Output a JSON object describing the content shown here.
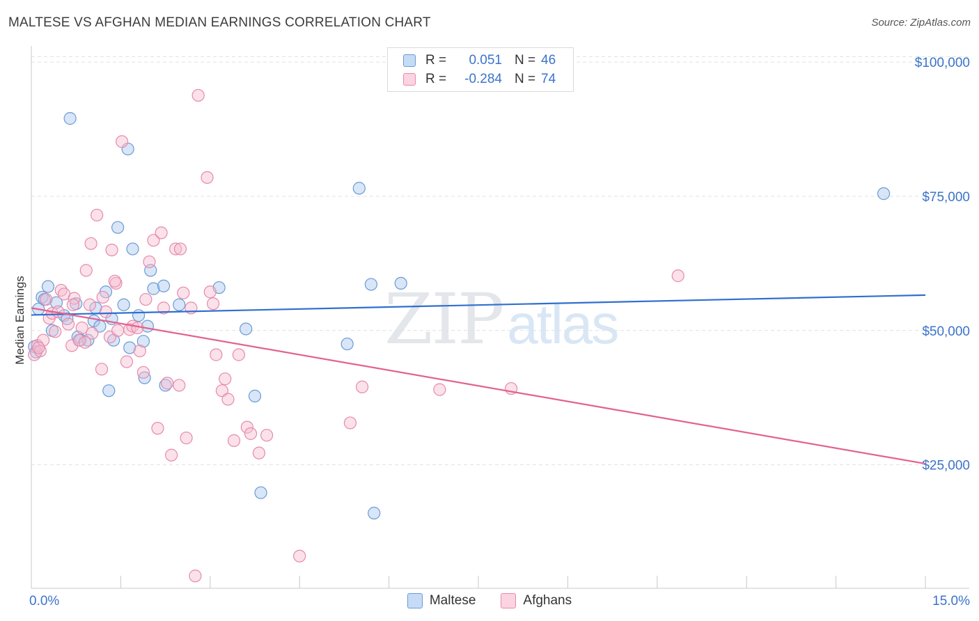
{
  "title": "MALTESE VS AFGHAN MEDIAN EARNINGS CORRELATION CHART",
  "source": "Source: ZipAtlas.com",
  "watermark": {
    "zip": "ZIP",
    "atlas": "atlas"
  },
  "legend": {
    "maltese": {
      "r_label": "R =",
      "r_value": "0.051",
      "n_label": "N =",
      "n_value": "46"
    },
    "afghans": {
      "r_label": "R =",
      "r_value": "-0.284",
      "n_label": "N =",
      "n_value": "74"
    }
  },
  "colors": {
    "maltese_fill": "#a9c8ee",
    "maltese_stroke": "#6a9ad6",
    "maltese_line": "#2f6fcf",
    "afghans_fill": "#f6bcd0",
    "afghans_stroke": "#e68aaa",
    "afghans_line": "#e2628e",
    "axis_label": "#3b74c9",
    "grid": "#e1e1e1"
  },
  "chart_data": {
    "type": "scatter",
    "title": "MALTESE VS AFGHAN MEDIAN EARNINGS CORRELATION CHART",
    "xlabel": "",
    "ylabel": "Median Earnings",
    "xlim": [
      0,
      15
    ],
    "ylim": [
      2000,
      103000
    ],
    "x_tick_labels": [
      "0.0%",
      "15.0%"
    ],
    "y_ticks": [
      25000,
      50000,
      75000,
      100000
    ],
    "y_tick_labels": [
      "$25,000",
      "$50,000",
      "$75,000",
      "$100,000"
    ],
    "series": [
      {
        "name": "Maltese",
        "points": [
          [
            0.05,
            47000
          ],
          [
            0.12,
            54000
          ],
          [
            0.18,
            56200
          ],
          [
            0.22,
            55800
          ],
          [
            0.28,
            58200
          ],
          [
            0.35,
            50000
          ],
          [
            0.42,
            55200
          ],
          [
            0.55,
            52800
          ],
          [
            0.6,
            52200
          ],
          [
            0.65,
            89500
          ],
          [
            0.75,
            55000
          ],
          [
            0.78,
            48800
          ],
          [
            0.82,
            48200
          ],
          [
            0.95,
            48200
          ],
          [
            1.05,
            51800
          ],
          [
            1.08,
            54200
          ],
          [
            1.15,
            50800
          ],
          [
            1.25,
            57200
          ],
          [
            1.3,
            38800
          ],
          [
            1.35,
            52200
          ],
          [
            1.38,
            48200
          ],
          [
            1.45,
            69200
          ],
          [
            1.55,
            54800
          ],
          [
            1.62,
            83800
          ],
          [
            1.65,
            46800
          ],
          [
            1.7,
            65200
          ],
          [
            1.8,
            52800
          ],
          [
            1.88,
            48000
          ],
          [
            1.9,
            41200
          ],
          [
            1.95,
            50800
          ],
          [
            2.0,
            61200
          ],
          [
            2.05,
            57800
          ],
          [
            2.22,
            58300
          ],
          [
            2.25,
            39800
          ],
          [
            2.48,
            54800
          ],
          [
            3.15,
            58000
          ],
          [
            3.6,
            50300
          ],
          [
            3.75,
            37800
          ],
          [
            3.85,
            19800
          ],
          [
            5.3,
            47500
          ],
          [
            5.5,
            76500
          ],
          [
            5.7,
            58600
          ],
          [
            5.75,
            16000
          ],
          [
            6.2,
            58800
          ],
          [
            14.3,
            75500
          ],
          [
            0.08,
            46000
          ]
        ]
      },
      {
        "name": "Afghans",
        "points": [
          [
            0.05,
            45500
          ],
          [
            0.1,
            47200
          ],
          [
            0.15,
            46200
          ],
          [
            0.2,
            48200
          ],
          [
            0.25,
            55800
          ],
          [
            0.3,
            52300
          ],
          [
            0.35,
            53200
          ],
          [
            0.4,
            49800
          ],
          [
            0.45,
            53500
          ],
          [
            0.5,
            57500
          ],
          [
            0.55,
            56800
          ],
          [
            0.62,
            51200
          ],
          [
            0.68,
            47200
          ],
          [
            0.72,
            56000
          ],
          [
            0.8,
            48200
          ],
          [
            0.85,
            50500
          ],
          [
            0.92,
            61200
          ],
          [
            0.98,
            54800
          ],
          [
            1.0,
            66200
          ],
          [
            1.02,
            49500
          ],
          [
            1.1,
            71500
          ],
          [
            1.18,
            42800
          ],
          [
            1.2,
            56200
          ],
          [
            1.25,
            53500
          ],
          [
            1.32,
            48800
          ],
          [
            1.35,
            65000
          ],
          [
            1.42,
            58800
          ],
          [
            1.45,
            50000
          ],
          [
            1.52,
            85200
          ],
          [
            1.6,
            44200
          ],
          [
            1.65,
            50200
          ],
          [
            1.7,
            50800
          ],
          [
            1.78,
            50500
          ],
          [
            1.82,
            46200
          ],
          [
            1.88,
            42200
          ],
          [
            1.92,
            55800
          ],
          [
            1.98,
            62800
          ],
          [
            2.05,
            66800
          ],
          [
            2.12,
            31800
          ],
          [
            2.18,
            68200
          ],
          [
            2.22,
            54200
          ],
          [
            2.28,
            40200
          ],
          [
            2.35,
            26800
          ],
          [
            2.42,
            65200
          ],
          [
            2.48,
            39800
          ],
          [
            2.5,
            65200
          ],
          [
            2.55,
            57000
          ],
          [
            2.6,
            30000
          ],
          [
            2.68,
            54200
          ],
          [
            2.75,
            4300
          ],
          [
            2.8,
            93800
          ],
          [
            2.95,
            78500
          ],
          [
            3.0,
            57200
          ],
          [
            3.05,
            55000
          ],
          [
            3.1,
            45500
          ],
          [
            3.2,
            38800
          ],
          [
            3.25,
            41000
          ],
          [
            3.3,
            37200
          ],
          [
            3.4,
            29500
          ],
          [
            3.48,
            45500
          ],
          [
            3.62,
            32000
          ],
          [
            3.68,
            30800
          ],
          [
            3.82,
            27200
          ],
          [
            3.95,
            30500
          ],
          [
            4.5,
            8000
          ],
          [
            5.35,
            32800
          ],
          [
            5.55,
            39500
          ],
          [
            6.85,
            39000
          ],
          [
            8.05,
            39200
          ],
          [
            10.85,
            60200
          ],
          [
            0.7,
            54800
          ],
          [
            1.4,
            59200
          ],
          [
            0.12,
            46800
          ],
          [
            0.9,
            47800
          ]
        ]
      }
    ],
    "trendlines": [
      {
        "name": "Maltese",
        "x": [
          0,
          15
        ],
        "y": [
          52900,
          56600
        ]
      },
      {
        "name": "Afghans",
        "x": [
          0,
          15
        ],
        "y": [
          54200,
          25200
        ]
      }
    ],
    "grid": true,
    "legend_position": "top-center"
  },
  "bottom_legend": {
    "maltese": "Maltese",
    "afghans": "Afghans"
  }
}
